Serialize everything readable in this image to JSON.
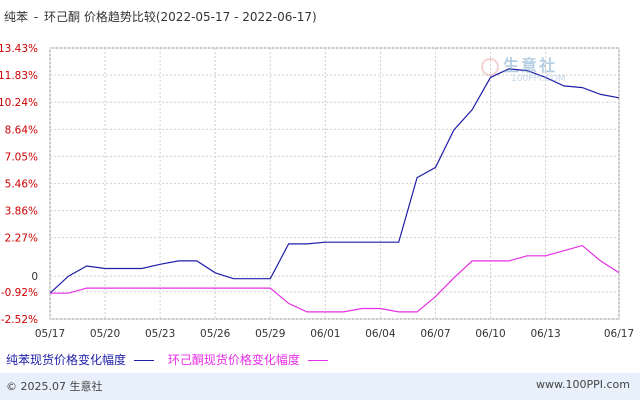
{
  "header": {
    "product_a": "纯苯",
    "separator": "-",
    "product_b": "环己酮",
    "title_suffix": "价格趋势比较(2022-05-17 - 2022-06-17)"
  },
  "watermark": {
    "brand": "生意社",
    "url": "100PPI.COM",
    "icon": "shengyishe-logo-icon"
  },
  "footer": {
    "copyright": "© 2025.07 生意社",
    "site": "www.100PPI.com"
  },
  "colors": {
    "series_a": "#1f1fa8",
    "series_b": "#e62ee6",
    "y_labels": "#cc0000",
    "grid": "#d0d0d0",
    "footer_bg": "#e8f0fb"
  },
  "chart_data": {
    "type": "line",
    "ylim": [
      -2.52,
      13.43
    ],
    "yticks": [
      13.43,
      11.83,
      10.24,
      8.64,
      7.05,
      5.46,
      3.86,
      2.27,
      0,
      -0.92,
      -2.52
    ],
    "ytick_labels": [
      "13.43%",
      "11.83%",
      "10.24%",
      "8.64%",
      "7.05%",
      "5.46%",
      "3.86%",
      "2.27%",
      "0",
      "-0.92%",
      "-2.52%"
    ],
    "x": [
      "05/17",
      "05/18",
      "05/19",
      "05/20",
      "05/21",
      "05/22",
      "05/23",
      "05/24",
      "05/25",
      "05/26",
      "05/27",
      "05/28",
      "05/29",
      "05/30",
      "05/31",
      "06/01",
      "06/02",
      "06/03",
      "06/04",
      "06/05",
      "06/06",
      "06/07",
      "06/08",
      "06/09",
      "06/10",
      "06/11",
      "06/12",
      "06/13",
      "06/14",
      "06/15",
      "06/16",
      "06/17"
    ],
    "xtick_labels": [
      "05/17",
      "05/20",
      "05/23",
      "05/26",
      "05/29",
      "06/01",
      "06/04",
      "06/07",
      "06/10",
      "06/13",
      "06/17"
    ],
    "legend_placement": "bottom",
    "grid": true,
    "series": [
      {
        "name": "纯苯现货价格变化幅度",
        "values": [
          -1.0,
          0.0,
          0.6,
          0.45,
          0.45,
          0.45,
          0.7,
          0.9,
          0.9,
          0.2,
          -0.15,
          -0.15,
          -0.15,
          1.9,
          1.9,
          2.0,
          2.0,
          2.0,
          2.0,
          2.0,
          5.8,
          6.4,
          8.6,
          9.8,
          11.7,
          12.2,
          12.1,
          11.7,
          11.2,
          11.1,
          10.7,
          10.5
        ]
      },
      {
        "name": "环己酮现货价格变化幅度",
        "values": [
          -1.0,
          -1.0,
          -0.7,
          -0.7,
          -0.7,
          -0.7,
          -0.7,
          -0.7,
          -0.7,
          -0.7,
          -0.7,
          -0.7,
          -0.7,
          -1.6,
          -2.1,
          -2.1,
          -2.1,
          -1.9,
          -1.9,
          -2.1,
          -2.1,
          -1.2,
          -0.1,
          0.9,
          0.9,
          0.9,
          1.2,
          1.2,
          1.5,
          1.8,
          0.9,
          0.2
        ]
      }
    ]
  }
}
